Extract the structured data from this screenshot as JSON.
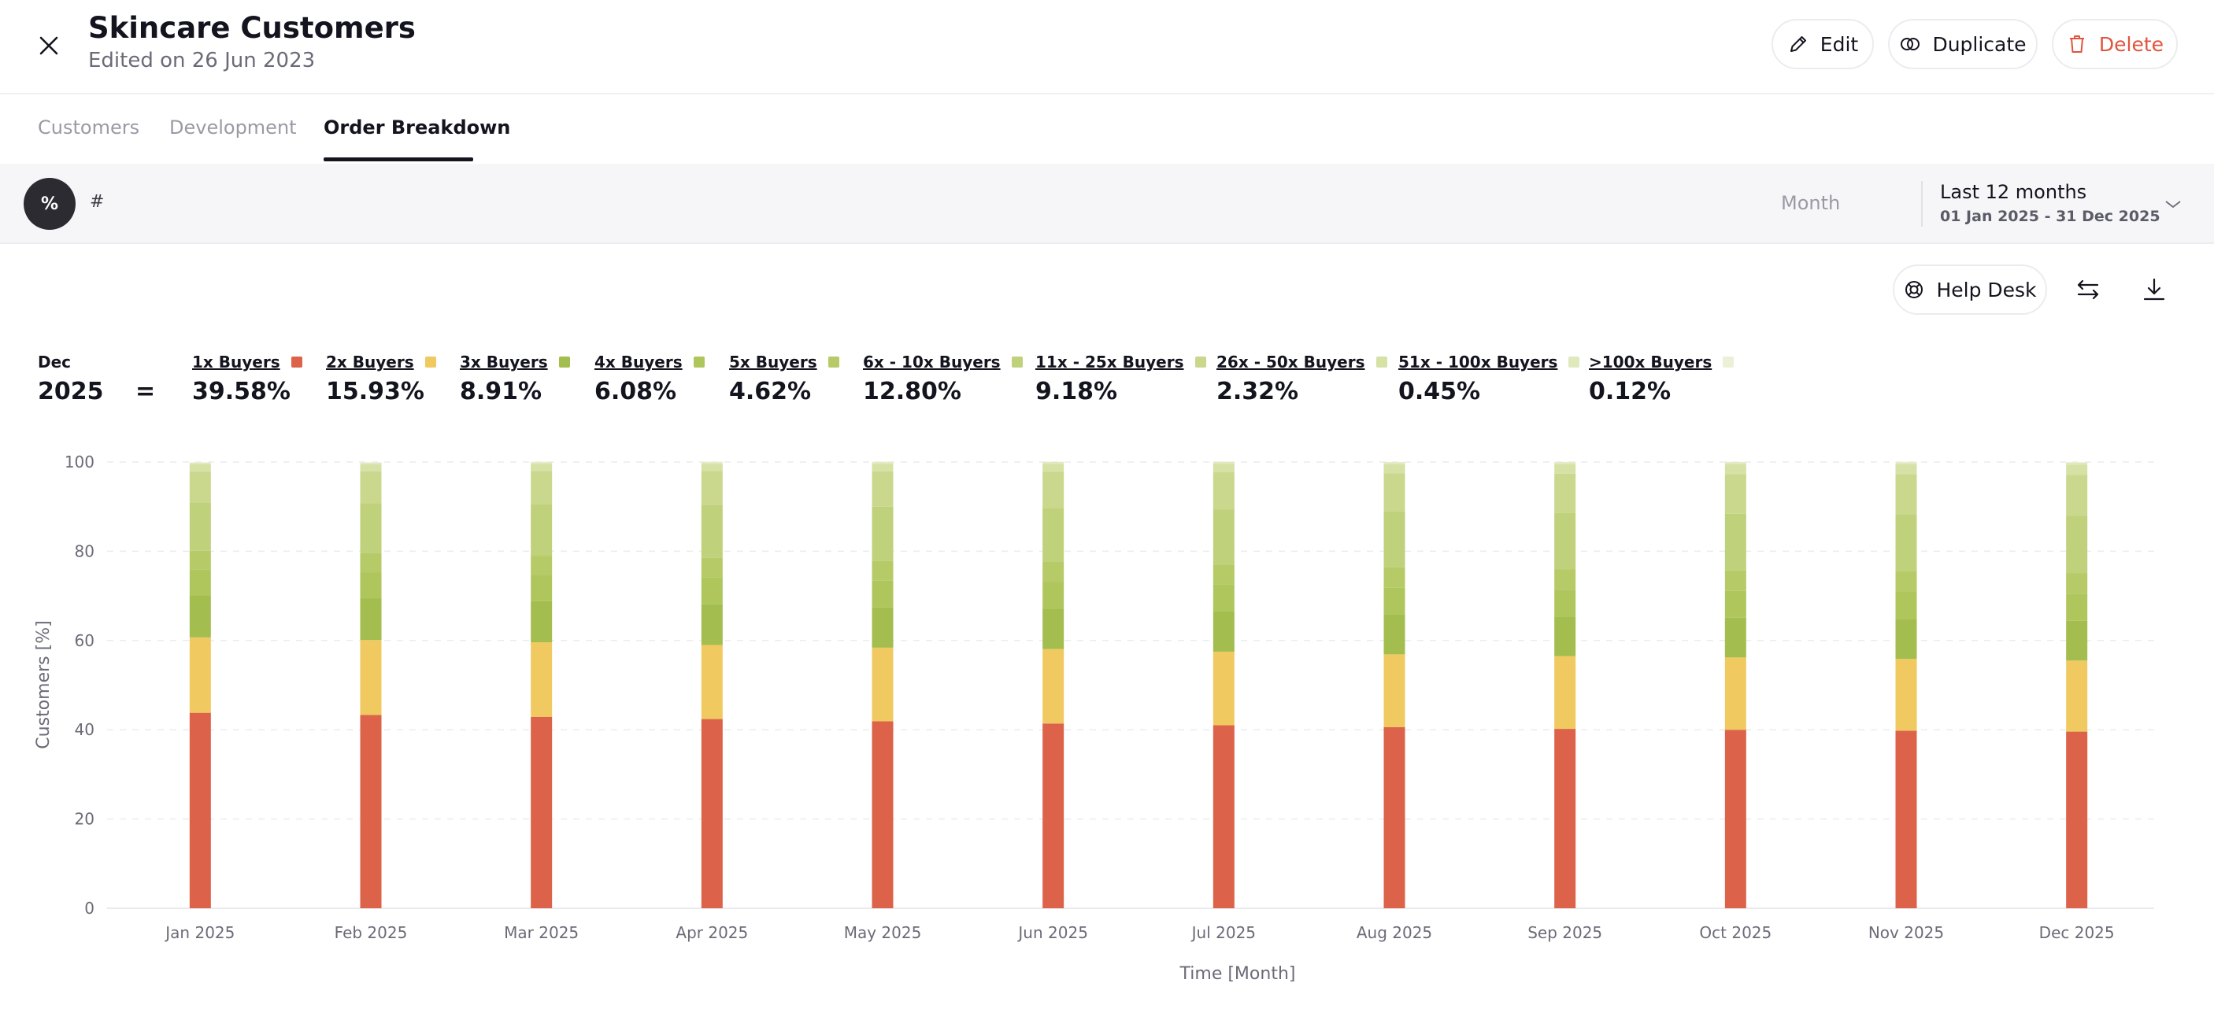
{
  "header": {
    "title": "Skincare Customers",
    "subtitle": "Edited on 26 Jun 2023",
    "edit_label": "Edit",
    "duplicate_label": "Duplicate",
    "delete_label": "Delete"
  },
  "tabs": [
    {
      "label": "Customers"
    },
    {
      "label": "Development"
    },
    {
      "label": "Order Breakdown"
    }
  ],
  "toolbar": {
    "percent_label": "%",
    "number_label": "#",
    "granularity_label": "Month",
    "range_label": "Last 12 months",
    "range_dates": "01 Jan 2025 - 31 Dec 2025"
  },
  "actions": {
    "help_label": "Help Desk"
  },
  "summary": {
    "month": "Dec",
    "year": "2025",
    "equals": "=",
    "items": [
      {
        "label": "1x Buyers",
        "value": "39.58%"
      },
      {
        "label": "2x Buyers",
        "value": "15.93%"
      },
      {
        "label": "3x Buyers",
        "value": "8.91%"
      },
      {
        "label": "4x Buyers",
        "value": "6.08%"
      },
      {
        "label": "5x Buyers",
        "value": "4.62%"
      },
      {
        "label": "6x - 10x Buyers",
        "value": "12.80%"
      },
      {
        "label": "11x - 25x Buyers",
        "value": "9.18%"
      },
      {
        "label": "26x - 50x Buyers",
        "value": "2.32%"
      },
      {
        "label": "51x - 100x Buyers",
        "value": "0.45%"
      },
      {
        "label": ">100x Buyers",
        "value": "0.12%"
      }
    ]
  },
  "colors": {
    "accent_delete": "#e0553e",
    "series": [
      "#dc634a",
      "#f0c961",
      "#a3bd4f",
      "#afc65d",
      "#b6ca67",
      "#bfd17a",
      "#c9d88d",
      "#d5e1a5",
      "#e0e8be",
      "#ebf0d6"
    ]
  },
  "chart_data": {
    "type": "bar",
    "stacked": true,
    "xlabel": "Time [Month]",
    "ylabel": "Customers [%]",
    "ylim": [
      0,
      100
    ],
    "yticks": [
      0,
      20,
      40,
      60,
      80,
      100
    ],
    "grid": true,
    "categories": [
      "Jan 2025",
      "Feb 2025",
      "Mar 2025",
      "Apr 2025",
      "May 2025",
      "Jun 2025",
      "Jul 2025",
      "Aug 2025",
      "Sep 2025",
      "Oct 2025",
      "Nov 2025",
      "Dec 2025"
    ],
    "series": [
      {
        "name": "1x Buyers",
        "values": [
          43.8,
          43.3,
          42.9,
          42.4,
          41.9,
          41.4,
          41.0,
          40.6,
          40.2,
          40.0,
          39.8,
          39.58
        ]
      },
      {
        "name": "2x Buyers",
        "values": [
          16.9,
          16.8,
          16.7,
          16.6,
          16.5,
          16.7,
          16.5,
          16.3,
          16.3,
          16.2,
          16.1,
          15.93
        ]
      },
      {
        "name": "3x Buyers",
        "values": [
          9.4,
          9.3,
          9.2,
          9.1,
          9.0,
          9.0,
          9.0,
          9.0,
          8.9,
          8.9,
          8.9,
          8.91
        ]
      },
      {
        "name": "4x Buyers",
        "values": [
          5.8,
          5.9,
          5.9,
          6.0,
          6.0,
          6.0,
          6.0,
          6.0,
          6.0,
          6.0,
          6.1,
          6.08
        ]
      },
      {
        "name": "5x Buyers",
        "values": [
          4.2,
          4.3,
          4.3,
          4.4,
          4.4,
          4.5,
          4.5,
          4.5,
          4.6,
          4.6,
          4.6,
          4.62
        ]
      },
      {
        "name": "6x - 10x Buyers",
        "values": [
          10.8,
          11.2,
          11.6,
          11.9,
          12.2,
          12.1,
          12.4,
          12.5,
          12.6,
          12.7,
          12.8,
          12.8
        ]
      },
      {
        "name": "11x - 25x Buyers",
        "values": [
          6.9,
          7.1,
          7.4,
          7.6,
          7.9,
          8.1,
          8.3,
          8.6,
          8.8,
          8.9,
          9.0,
          9.18
        ]
      },
      {
        "name": "26x - 50x Buyers",
        "values": [
          1.7,
          1.6,
          1.6,
          1.6,
          1.7,
          1.8,
          1.9,
          2.0,
          2.1,
          2.2,
          2.2,
          2.32
        ]
      },
      {
        "name": "51x - 100x Buyers",
        "values": [
          0.35,
          0.35,
          0.36,
          0.37,
          0.38,
          0.39,
          0.4,
          0.41,
          0.42,
          0.43,
          0.44,
          0.45
        ]
      },
      {
        "name": ">100x Buyers",
        "values": [
          0.1,
          0.1,
          0.1,
          0.1,
          0.1,
          0.1,
          0.1,
          0.1,
          0.11,
          0.11,
          0.12,
          0.12
        ]
      }
    ]
  }
}
